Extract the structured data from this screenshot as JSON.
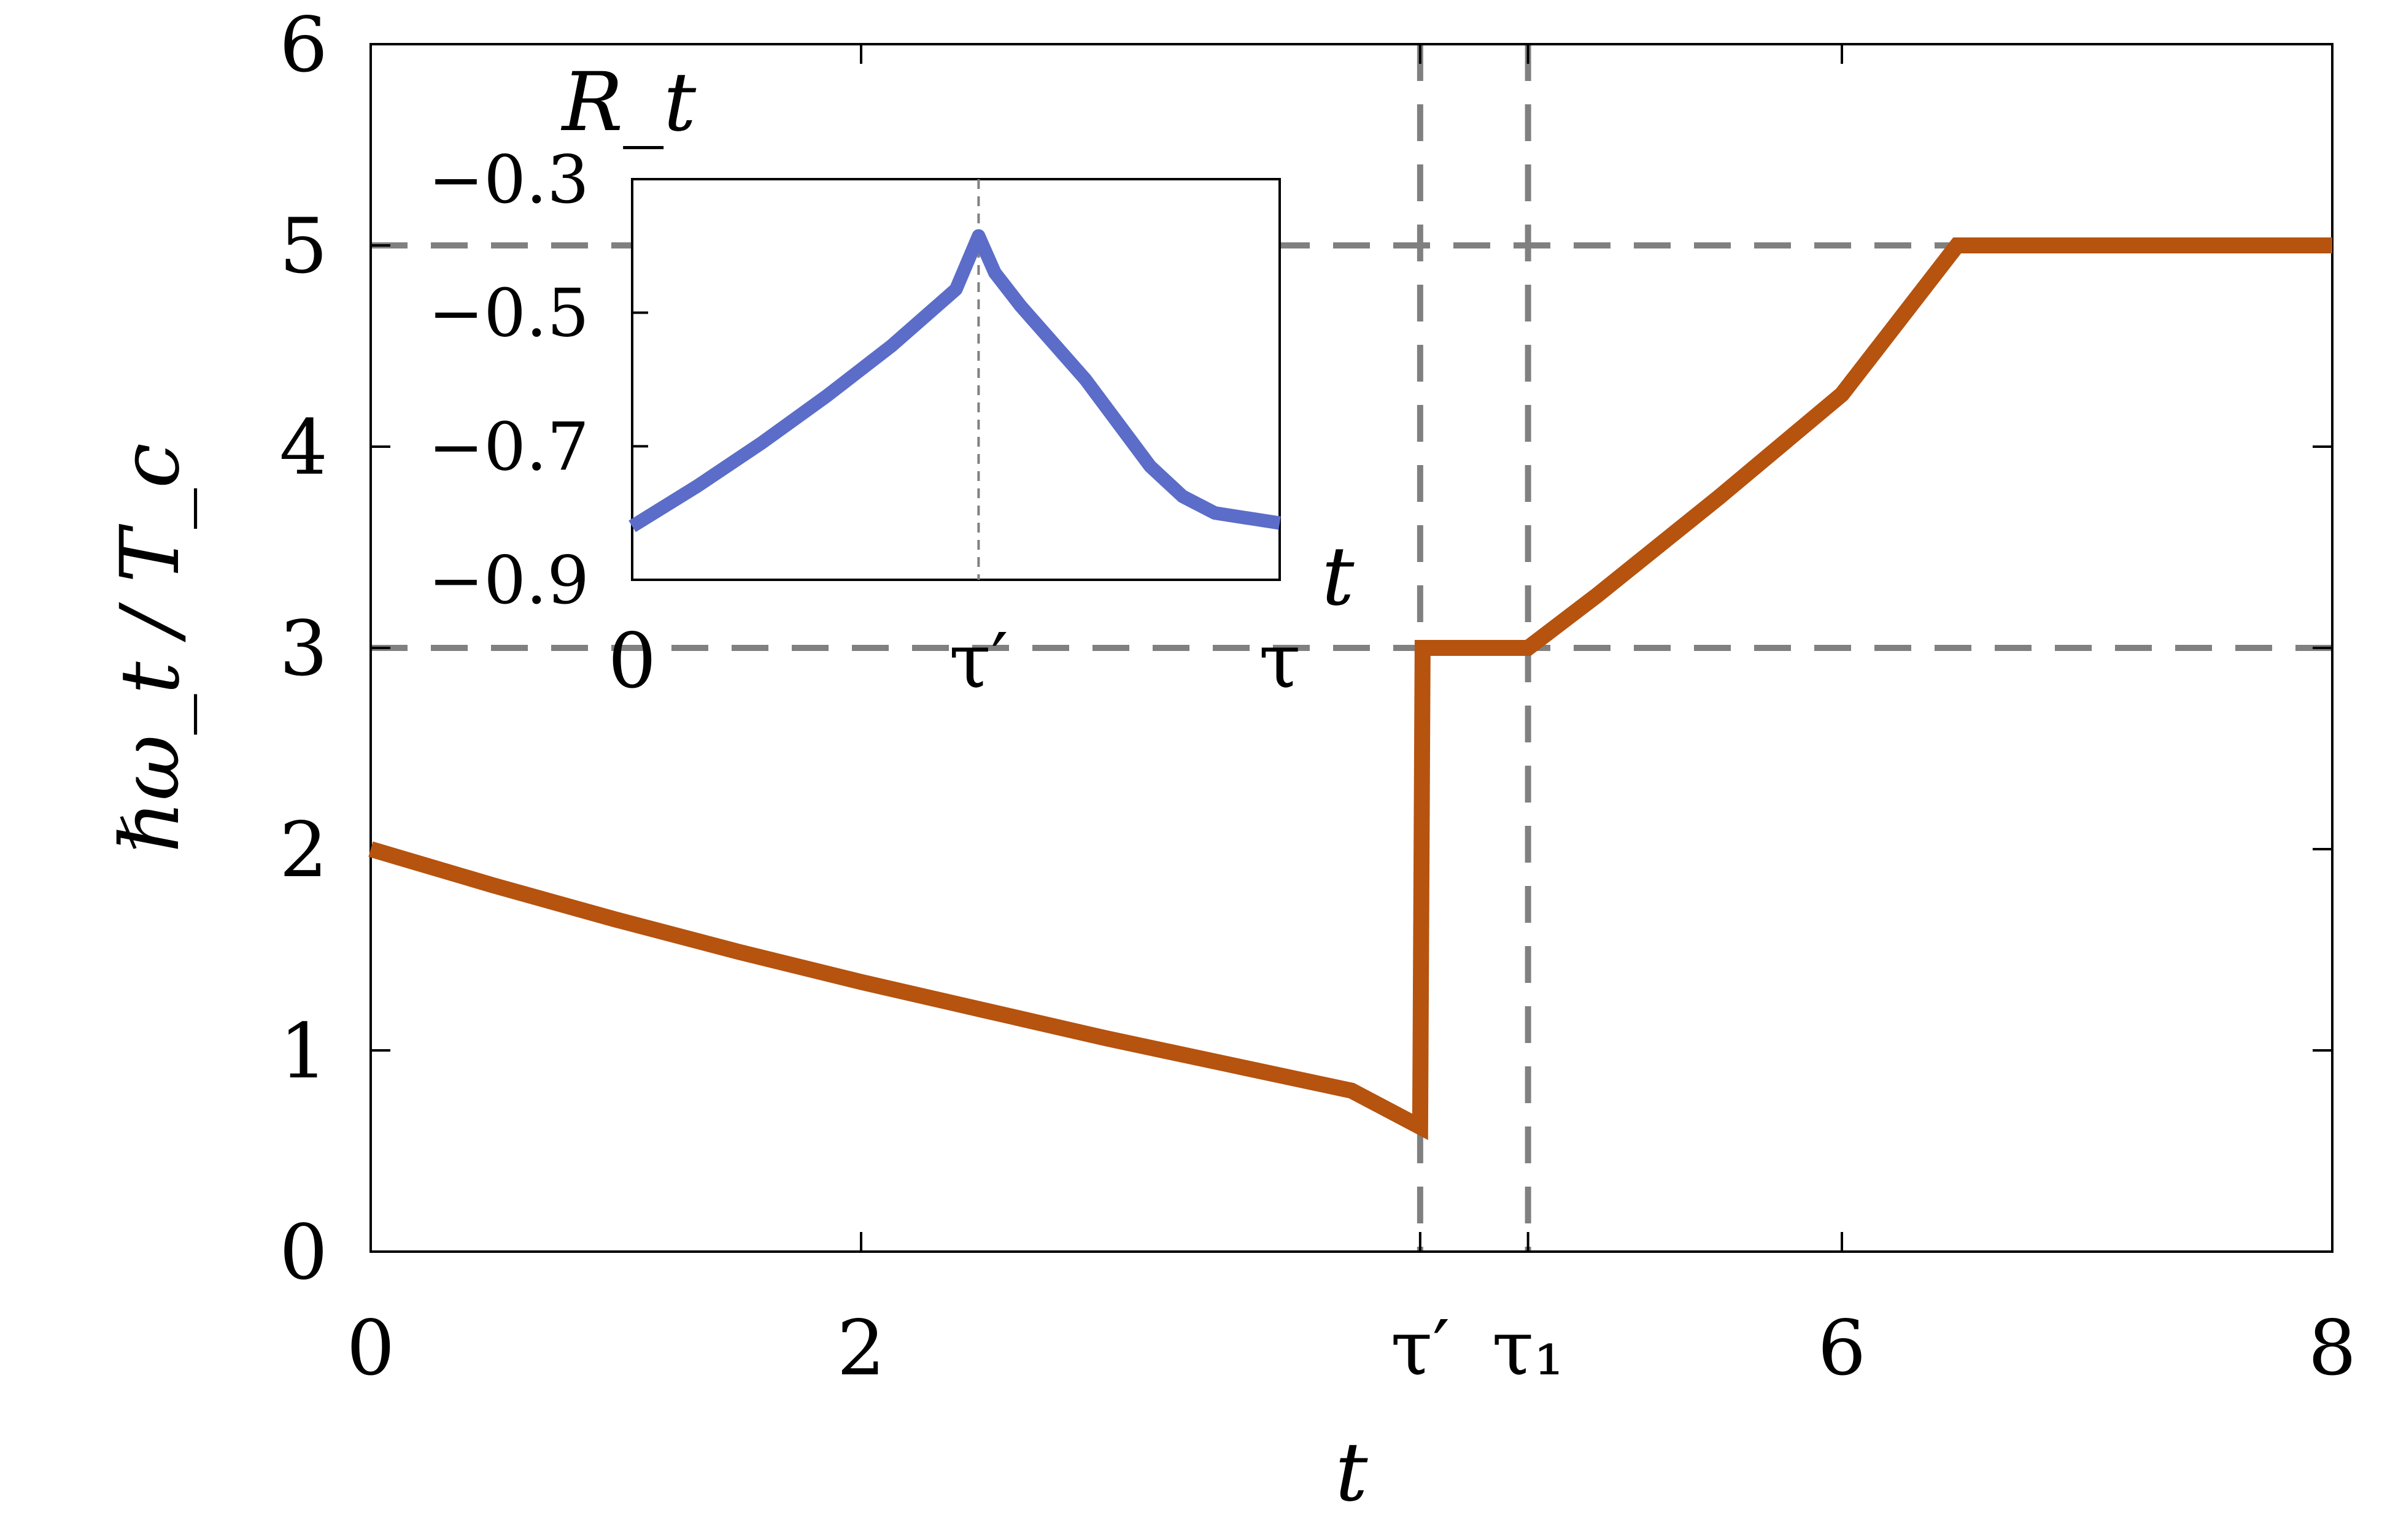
{
  "chart_data": [
    {
      "type": "line",
      "xlabel": "t",
      "ylabel": "ℏω_t / T_c",
      "xlim": [
        0,
        8
      ],
      "ylim": [
        0,
        6
      ],
      "xticks": [
        {
          "value": 0,
          "label": "0"
        },
        {
          "value": 2,
          "label": "2"
        },
        {
          "value": 4.28,
          "label": "τ′"
        },
        {
          "value": 4.72,
          "label": "τ₁"
        },
        {
          "value": 6,
          "label": "6"
        },
        {
          "value": 8,
          "label": "8"
        }
      ],
      "yticks": [
        {
          "value": 0,
          "label": "0"
        },
        {
          "value": 1,
          "label": "1"
        },
        {
          "value": 2,
          "label": "2"
        },
        {
          "value": 3,
          "label": "3"
        },
        {
          "value": 4,
          "label": "4"
        },
        {
          "value": 5,
          "label": "5"
        },
        {
          "value": 6,
          "label": "6"
        }
      ],
      "reference_lines": {
        "vertical": [
          4.28,
          4.72
        ],
        "horizontal": [
          3,
          5
        ],
        "style": "dashed",
        "color": "#808080"
      },
      "grid": false,
      "series": [
        {
          "color": "#b5530f",
          "x": [
            0,
            0.5,
            1.0,
            1.5,
            2.0,
            2.5,
            3.0,
            3.5,
            4.0,
            4.28,
            4.29,
            4.72,
            5.0,
            5.5,
            6.0,
            6.47,
            7.0,
            7.5,
            8.0
          ],
          "y": [
            2.0,
            1.82,
            1.65,
            1.49,
            1.34,
            1.2,
            1.06,
            0.93,
            0.8,
            0.62,
            3.0,
            3.0,
            3.26,
            3.75,
            4.26,
            5.0,
            5.0,
            5.0,
            5.0
          ]
        }
      ]
    },
    {
      "type": "line",
      "ylabel": "R_t",
      "xlabel": "t",
      "xticks": [
        {
          "value": 0,
          "label": "0"
        },
        {
          "value": 0.535,
          "label": "τ′"
        },
        {
          "value": 1,
          "label": "τ"
        }
      ],
      "yticks": [
        {
          "value": -0.3,
          "label": "−0.3"
        },
        {
          "value": -0.5,
          "label": "−0.5"
        },
        {
          "value": -0.7,
          "label": "−0.7"
        },
        {
          "value": -0.9,
          "label": "−0.9"
        }
      ],
      "xlim": [
        0,
        1
      ],
      "ylim": [
        -0.9,
        -0.3
      ],
      "reference_lines": {
        "vertical": [
          0.535
        ],
        "style": "dashed",
        "color": "#808080"
      },
      "series": [
        {
          "color": "#5b6dc8",
          "x": [
            0,
            0.1,
            0.2,
            0.3,
            0.4,
            0.5,
            0.535,
            0.56,
            0.6,
            0.7,
            0.8,
            0.85,
            0.9,
            1.0
          ],
          "y": [
            -0.82,
            -0.76,
            -0.695,
            -0.625,
            -0.55,
            -0.465,
            -0.385,
            -0.44,
            -0.49,
            -0.6,
            -0.73,
            -0.775,
            -0.8,
            -0.815
          ]
        }
      ]
    }
  ]
}
